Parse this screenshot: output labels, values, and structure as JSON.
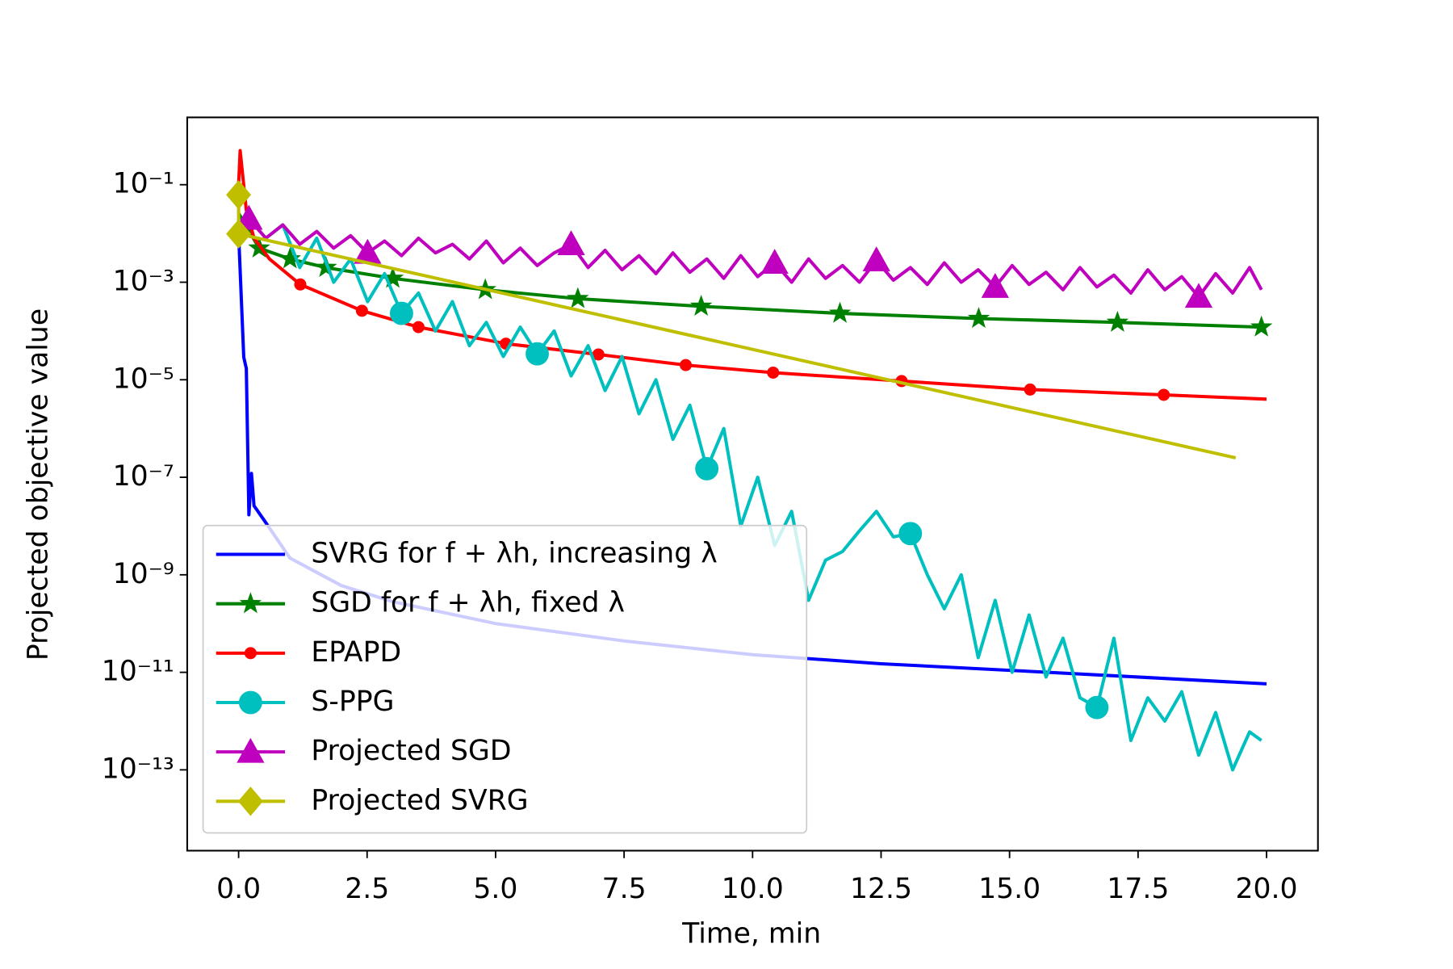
{
  "chart_data": {
    "type": "line",
    "xlabel": "Time, min",
    "ylabel": "Projected objective value",
    "xlim": [
      -1,
      21
    ],
    "ylim": [
      2.2e-15,
      2.4
    ],
    "yscale": "log",
    "legend": "lower left",
    "xticks": [
      {
        "value": 0,
        "label": "0.0"
      },
      2.5,
      {
        "value": 5,
        "label": "5.0"
      },
      7.5,
      {
        "value": 10,
        "label": "10.0"
      },
      12.5,
      {
        "value": 15,
        "label": "15.0"
      },
      17.5,
      {
        "value": 20,
        "label": "20.0"
      }
    ],
    "yticks": [
      {
        "value": 0.1,
        "label": "10⁻¹"
      },
      {
        "value": 0.001,
        "label": "10⁻³"
      },
      {
        "value": 1e-05,
        "label": "10⁻⁵"
      },
      {
        "value": 1e-07,
        "label": "10⁻⁷"
      },
      {
        "value": 1e-09,
        "label": "10⁻⁹"
      },
      {
        "value": 1e-11,
        "label": "10⁻¹¹"
      },
      {
        "value": 1e-13,
        "label": "10⁻¹³"
      }
    ],
    "series": [
      {
        "name": "SVRG for f + λh, increasing λ",
        "color": "#0000ff",
        "x": [
          0,
          0.1,
          0.15,
          0.2,
          0.25,
          0.3,
          0.5,
          1,
          2,
          3,
          5,
          7.5,
          10,
          12.5,
          15,
          17.5,
          20
        ],
        "values": [
          0.01,
          2.9e-05,
          1.7e-05,
          1.7e-08,
          1.2e-07,
          2.6e-08,
          1.3e-08,
          2.2e-09,
          6e-10,
          2.8e-10,
          1e-10,
          4.4e-11,
          2.3e-11,
          1.5e-11,
          1.1e-11,
          8e-12,
          5.8e-12
        ]
      },
      {
        "name": "SGD for f + λh, fixed λ",
        "color": "#008000",
        "marker": "*",
        "markevery": [
          1,
          2,
          3,
          4,
          5,
          6,
          7,
          8,
          9,
          10,
          11
        ],
        "x": [
          0,
          0.4,
          1,
          1.7,
          3,
          4.8,
          6.6,
          9,
          11.7,
          14.4,
          17.1,
          19.9
        ],
        "values": [
          0.026,
          0.005,
          0.003,
          0.002,
          0.0012,
          0.0007,
          0.00046,
          0.00032,
          0.00023,
          0.00018,
          0.00015,
          0.00012
        ]
      },
      {
        "name": "EPAPD",
        "color": "#ff0000",
        "marker": ".",
        "markevery": [
          5,
          6,
          7,
          8,
          9,
          10,
          11,
          12,
          13,
          14
        ],
        "x": [
          0,
          0.03,
          0.15,
          0.3,
          0.6,
          1.2,
          2.4,
          3.5,
          5.2,
          7,
          8.7,
          10.4,
          12.9,
          15.4,
          18,
          20
        ],
        "values": [
          0.1,
          0.5,
          0.03,
          0.008,
          0.003,
          0.0009,
          0.00026,
          0.00012,
          5.5e-05,
          3.3e-05,
          2e-05,
          1.4e-05,
          9.4e-06,
          6.3e-06,
          4.9e-06,
          4e-06
        ]
      },
      {
        "name": "S-PPG",
        "color": "#00bfbf",
        "marker": "o",
        "markevery": [
          9,
          17,
          27,
          39,
          50
        ],
        "x": [
          0.2,
          0.53,
          0.86,
          1.19,
          1.52,
          1.85,
          2.18,
          2.51,
          2.84,
          3.17,
          3.5,
          3.83,
          4.16,
          4.49,
          4.82,
          5.15,
          5.48,
          5.81,
          6.14,
          6.47,
          6.8,
          7.13,
          7.46,
          7.79,
          8.12,
          8.45,
          8.78,
          9.11,
          9.44,
          9.77,
          10.1,
          10.43,
          10.76,
          11.09,
          11.42,
          11.75,
          12.08,
          12.41,
          12.74,
          13.07,
          13.4,
          13.73,
          14.06,
          14.39,
          14.72,
          15.05,
          15.38,
          15.71,
          16.04,
          16.37,
          16.7,
          17.03,
          17.36,
          17.69,
          18.02,
          18.35,
          18.68,
          19.01,
          19.34,
          19.67,
          19.9
        ],
        "values": [
          0.02,
          0.008,
          0.015,
          0.002,
          0.008,
          0.001,
          0.003,
          0.0004,
          0.0015,
          0.00023,
          0.0006,
          0.0001,
          0.0004,
          5e-05,
          0.00015,
          3e-05,
          0.00012,
          3.4e-05,
          0.0001,
          1.2e-05,
          5e-05,
          6e-06,
          3e-05,
          2e-06,
          1e-05,
          6e-07,
          3e-06,
          1.5e-07,
          1e-06,
          1e-08,
          1e-07,
          4e-09,
          2e-08,
          3e-10,
          2e-09,
          3e-09,
          8e-09,
          2e-08,
          6e-09,
          7e-09,
          1e-09,
          2e-10,
          1e-09,
          2e-11,
          3e-10,
          1e-11,
          1.5e-10,
          8e-12,
          5e-11,
          3e-12,
          1.9e-12,
          5e-11,
          4e-13,
          3e-12,
          1e-12,
          4e-12,
          2e-13,
          1.5e-12,
          1e-13,
          6e-13,
          4e-13
        ]
      },
      {
        "name": "Projected SGD",
        "color": "#bf00bf",
        "marker": "^",
        "markevery": [
          0,
          7,
          19,
          31,
          37,
          44,
          56
        ],
        "x": [
          0.2,
          0.53,
          0.86,
          1.19,
          1.52,
          1.85,
          2.18,
          2.51,
          2.84,
          3.17,
          3.5,
          3.83,
          4.16,
          4.49,
          4.82,
          5.15,
          5.48,
          5.81,
          6.14,
          6.47,
          6.8,
          7.13,
          7.46,
          7.79,
          8.12,
          8.45,
          8.78,
          9.11,
          9.44,
          9.77,
          10.1,
          10.43,
          10.76,
          11.09,
          11.42,
          11.75,
          12.08,
          12.41,
          12.74,
          13.07,
          13.4,
          13.73,
          14.06,
          14.39,
          14.72,
          15.05,
          15.38,
          15.71,
          16.04,
          16.37,
          16.7,
          17.03,
          17.36,
          17.69,
          18.02,
          18.35,
          18.68,
          19.01,
          19.34,
          19.67,
          19.9
        ],
        "values": [
          0.02,
          0.008,
          0.015,
          0.006,
          0.011,
          0.005,
          0.009,
          0.004,
          0.007,
          0.0035,
          0.008,
          0.004,
          0.006,
          0.003,
          0.007,
          0.0025,
          0.005,
          0.0022,
          0.004,
          0.006,
          0.002,
          0.0045,
          0.0018,
          0.0035,
          0.0015,
          0.004,
          0.0016,
          0.003,
          0.0012,
          0.0035,
          0.0013,
          0.0025,
          0.001,
          0.003,
          0.0012,
          0.0022,
          0.001,
          0.0028,
          0.0011,
          0.002,
          0.0009,
          0.0025,
          0.001,
          0.0018,
          0.0008,
          0.0022,
          0.0009,
          0.0016,
          0.0007,
          0.002,
          0.0008,
          0.0014,
          0.0006,
          0.0018,
          0.0007,
          0.0013,
          0.0005,
          0.0015,
          0.0006,
          0.002,
          0.0007
        ]
      },
      {
        "name": "Projected SVRG",
        "color": "#bfbf00",
        "marker": "D",
        "markevery": [
          0,
          1
        ],
        "x": [
          0,
          0,
          19.4
        ],
        "values": [
          0.062,
          0.0098,
          2.5e-07
        ]
      }
    ]
  }
}
